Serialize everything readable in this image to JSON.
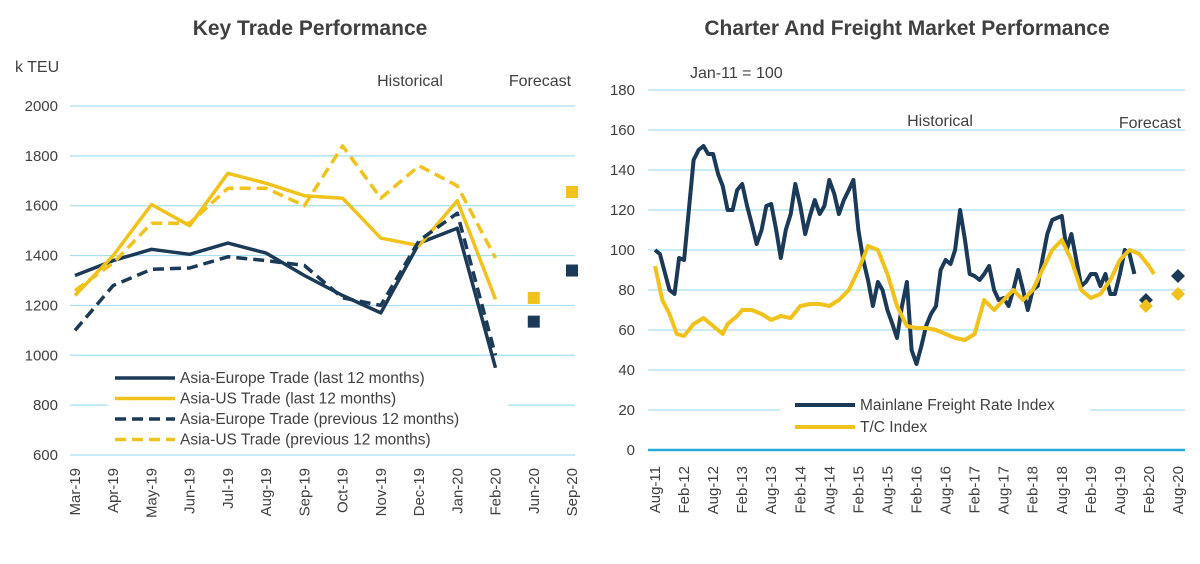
{
  "chart_data": [
    {
      "type": "line",
      "title": "Key Trade Performance",
      "ylabel": "k TEU",
      "ylim": [
        600,
        2000
      ],
      "yticks": [
        600,
        800,
        1000,
        1200,
        1400,
        1600,
        1800,
        2000
      ],
      "grid": true,
      "categories": [
        "Mar-19",
        "Apr-19",
        "May-19",
        "Jun-19",
        "Jul-19",
        "Aug-19",
        "Sep-19",
        "Oct-19",
        "Nov-19",
        "Dec-19",
        "Jan-20",
        "Feb-20",
        "Jun-20",
        "Sep-20"
      ],
      "annotations": [
        "Historical",
        "Forecast"
      ],
      "legend_position": "bottom-left",
      "series": [
        {
          "name": "Asia-Europe Trade (last 12 months)",
          "style": "solid",
          "color": "#1b3a57",
          "points": [
            [
              0,
              1320
            ],
            [
              1,
              1380
            ],
            [
              2,
              1425
            ],
            [
              3,
              1405
            ],
            [
              4,
              1450
            ],
            [
              5,
              1410
            ],
            [
              6,
              1320
            ],
            [
              7,
              1240
            ],
            [
              8,
              1170
            ],
            [
              9,
              1450
            ],
            [
              10,
              1510
            ],
            [
              11,
              950
            ]
          ]
        },
        {
          "name": "Asia-US Trade (last 12 months)",
          "style": "solid",
          "color": "#f0c21b",
          "points": [
            [
              0,
              1240
            ],
            [
              1,
              1400
            ],
            [
              2,
              1605
            ],
            [
              3,
              1520
            ],
            [
              4,
              1730
            ],
            [
              5,
              1690
            ],
            [
              6,
              1640
            ],
            [
              7,
              1630
            ],
            [
              8,
              1470
            ],
            [
              9,
              1440
            ],
            [
              10,
              1620
            ],
            [
              11,
              1225
            ]
          ]
        },
        {
          "name": "Asia-Europe Trade (previous 12 months)",
          "style": "dashed",
          "color": "#1b3a57",
          "points": [
            [
              0,
              1100
            ],
            [
              1,
              1280
            ],
            [
              2,
              1345
            ],
            [
              3,
              1350
            ],
            [
              4,
              1395
            ],
            [
              5,
              1380
            ],
            [
              6,
              1360
            ],
            [
              7,
              1230
            ],
            [
              8,
              1200
            ],
            [
              9,
              1460
            ],
            [
              10,
              1570
            ],
            [
              11,
              1000
            ]
          ]
        },
        {
          "name": "Asia-US Trade (previous 12 months)",
          "style": "dashed",
          "color": "#f0c21b",
          "points": [
            [
              0,
              1260
            ],
            [
              1,
              1370
            ],
            [
              2,
              1530
            ],
            [
              3,
              1530
            ],
            [
              4,
              1670
            ],
            [
              5,
              1670
            ],
            [
              6,
              1600
            ],
            [
              7,
              1840
            ],
            [
              8,
              1630
            ],
            [
              9,
              1760
            ],
            [
              10,
              1680
            ],
            [
              11,
              1390
            ]
          ]
        }
      ],
      "forecast_markers": [
        {
          "category": "Jun-20",
          "value": 1230,
          "color": "#f0c21b"
        },
        {
          "category": "Jun-20",
          "value": 1135,
          "color": "#1b3a57"
        },
        {
          "category": "Sep-20",
          "value": 1655,
          "color": "#f0c21b"
        },
        {
          "category": "Sep-20",
          "value": 1340,
          "color": "#1b3a57"
        }
      ]
    },
    {
      "type": "line",
      "title": "Charter And Freight Market Performance",
      "ylabel": "",
      "subtitle": "Jan-11 = 100",
      "ylim": [
        0,
        180
      ],
      "yticks": [
        0,
        20,
        40,
        60,
        80,
        100,
        120,
        140,
        160,
        180
      ],
      "grid": true,
      "categories": [
        "Aug-11",
        "Feb-12",
        "Aug-12",
        "Feb-13",
        "Aug-13",
        "Feb-14",
        "Aug-14",
        "Feb-15",
        "Aug-15",
        "Feb-16",
        "Aug-16",
        "Feb-17",
        "Aug-17",
        "Feb-18",
        "Aug-18",
        "Feb-19",
        "Aug-19",
        "Feb-20",
        "Aug-20"
      ],
      "annotations": [
        "Historical",
        "Forecast"
      ],
      "legend_position": "bottom-center",
      "series": [
        {
          "name": "Mainlane Freight Rate Index",
          "color": "#1b3a57",
          "points": [
            [
              0,
              100
            ],
            [
              0.17,
              98
            ],
            [
              0.5,
              80
            ],
            [
              0.67,
              78
            ],
            [
              0.83,
              96
            ],
            [
              1,
              95
            ],
            [
              1.33,
              145
            ],
            [
              1.5,
              150
            ],
            [
              1.67,
              152
            ],
            [
              1.83,
              148
            ],
            [
              2,
              148
            ],
            [
              2.17,
              138
            ],
            [
              2.33,
              132
            ],
            [
              2.5,
              120
            ],
            [
              2.67,
              120
            ],
            [
              2.83,
              130
            ],
            [
              3,
              133
            ],
            [
              3.17,
              122
            ],
            [
              3.33,
              113
            ],
            [
              3.5,
              103
            ],
            [
              3.67,
              110
            ],
            [
              3.83,
              122
            ],
            [
              4,
              123
            ],
            [
              4.17,
              110
            ],
            [
              4.33,
              96
            ],
            [
              4.5,
              110
            ],
            [
              4.67,
              118
            ],
            [
              4.83,
              133
            ],
            [
              5,
              122
            ],
            [
              5.17,
              108
            ],
            [
              5.33,
              117
            ],
            [
              5.5,
              125
            ],
            [
              5.67,
              118
            ],
            [
              5.83,
              122
            ],
            [
              6,
              135
            ],
            [
              6.17,
              128
            ],
            [
              6.33,
              118
            ],
            [
              6.5,
              125
            ],
            [
              6.67,
              130
            ],
            [
              6.83,
              135
            ],
            [
              7,
              110
            ],
            [
              7.17,
              95
            ],
            [
              7.33,
              85
            ],
            [
              7.5,
              72
            ],
            [
              7.67,
              84
            ],
            [
              7.83,
              80
            ],
            [
              8,
              70
            ],
            [
              8.17,
              63
            ],
            [
              8.33,
              56
            ],
            [
              8.5,
              72
            ],
            [
              8.67,
              84
            ],
            [
              8.83,
              50
            ],
            [
              9,
              43
            ],
            [
              9.17,
              52
            ],
            [
              9.33,
              62
            ],
            [
              9.5,
              68
            ],
            [
              9.67,
              72
            ],
            [
              9.83,
              90
            ],
            [
              10,
              95
            ],
            [
              10.17,
              93
            ],
            [
              10.33,
              100
            ],
            [
              10.5,
              120
            ],
            [
              10.67,
              105
            ],
            [
              10.83,
              88
            ],
            [
              11,
              87
            ],
            [
              11.17,
              85
            ],
            [
              11.33,
              88
            ],
            [
              11.5,
              92
            ],
            [
              11.67,
              80
            ],
            [
              11.83,
              75
            ],
            [
              12,
              76
            ],
            [
              12.17,
              72
            ],
            [
              12.33,
              80
            ],
            [
              12.5,
              90
            ],
            [
              12.67,
              80
            ],
            [
              12.83,
              70
            ],
            [
              13,
              80
            ],
            [
              13.17,
              82
            ],
            [
              13.33,
              95
            ],
            [
              13.5,
              108
            ],
            [
              13.67,
              115
            ],
            [
              13.83,
              116
            ],
            [
              14,
              117
            ],
            [
              14.17,
              100
            ],
            [
              14.33,
              108
            ],
            [
              14.5,
              95
            ],
            [
              14.67,
              82
            ],
            [
              14.83,
              84
            ],
            [
              15,
              88
            ],
            [
              15.17,
              88
            ],
            [
              15.33,
              82
            ],
            [
              15.5,
              88
            ],
            [
              15.67,
              78
            ],
            [
              15.83,
              78
            ],
            [
              16,
              88
            ],
            [
              16.17,
              100
            ],
            [
              16.33,
              98
            ],
            [
              16.5,
              88
            ]
          ]
        },
        {
          "name": "T/C Index",
          "color": "#f0c21b",
          "points": [
            [
              0,
              92
            ],
            [
              0.25,
              75
            ],
            [
              0.5,
              68
            ],
            [
              0.75,
              58
            ],
            [
              1,
              57
            ],
            [
              1.33,
              63
            ],
            [
              1.67,
              66
            ],
            [
              2,
              62
            ],
            [
              2.33,
              58
            ],
            [
              2.5,
              63
            ],
            [
              2.83,
              67
            ],
            [
              3,
              70
            ],
            [
              3.33,
              70
            ],
            [
              3.67,
              68
            ],
            [
              4,
              65
            ],
            [
              4.33,
              67
            ],
            [
              4.67,
              66
            ],
            [
              5,
              72
            ],
            [
              5.33,
              73
            ],
            [
              5.67,
              73
            ],
            [
              6,
              72
            ],
            [
              6.33,
              75
            ],
            [
              6.67,
              80
            ],
            [
              7,
              90
            ],
            [
              7.33,
              102
            ],
            [
              7.67,
              100
            ],
            [
              8,
              88
            ],
            [
              8.33,
              72
            ],
            [
              8.67,
              62
            ],
            [
              9,
              61
            ],
            [
              9.33,
              61
            ],
            [
              9.67,
              60
            ],
            [
              10,
              58
            ],
            [
              10.33,
              56
            ],
            [
              10.67,
              55
            ],
            [
              11,
              58
            ],
            [
              11.33,
              75
            ],
            [
              11.67,
              70
            ],
            [
              12,
              75
            ],
            [
              12.33,
              80
            ],
            [
              12.67,
              75
            ],
            [
              13,
              80
            ],
            [
              13.33,
              90
            ],
            [
              13.67,
              100
            ],
            [
              14,
              105
            ],
            [
              14.33,
              95
            ],
            [
              14.67,
              80
            ],
            [
              15,
              76
            ],
            [
              15.33,
              78
            ],
            [
              15.67,
              85
            ],
            [
              16,
              95
            ],
            [
              16.33,
              100
            ],
            [
              16.67,
              98
            ],
            [
              17,
              92
            ],
            [
              17.17,
              88
            ]
          ]
        }
      ],
      "forecast_markers": [
        {
          "category": "Feb-20",
          "value": 75,
          "color": "#1b3a57"
        },
        {
          "category": "Feb-20",
          "value": 72,
          "color": "#f0c21b"
        },
        {
          "category": "Aug-20",
          "value": 87,
          "color": "#1b3a57"
        },
        {
          "category": "Aug-20",
          "value": 78,
          "color": "#f0c21b"
        }
      ]
    }
  ]
}
